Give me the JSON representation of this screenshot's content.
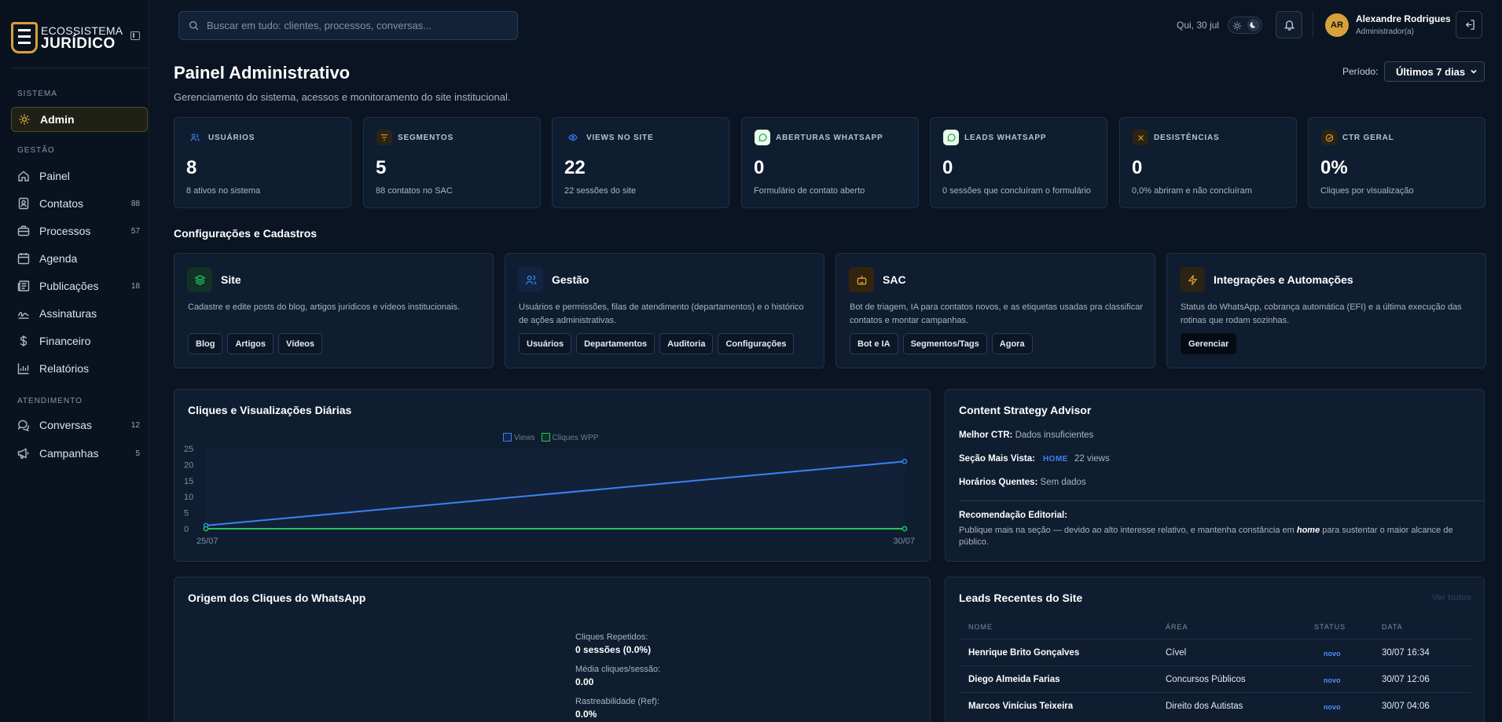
{
  "brand": {
    "line1": "ECOSSISTEMA",
    "line2": "JURÍDICO"
  },
  "sidebar": {
    "sections": {
      "sistema": "SISTEMA",
      "gestao": "GESTÃO",
      "atendimento": "ATENDIMENTO"
    },
    "items": [
      {
        "label": "Admin",
        "icon": "admin-icon",
        "count": ""
      },
      {
        "label": "Painel",
        "icon": "home-icon",
        "count": ""
      },
      {
        "label": "Contatos",
        "icon": "contacts-icon",
        "count": "88"
      },
      {
        "label": "Processos",
        "icon": "briefcase-icon",
        "count": "57"
      },
      {
        "label": "Agenda",
        "icon": "calendar-icon",
        "count": ""
      },
      {
        "label": "Publicações",
        "icon": "newspaper-icon",
        "count": "18"
      },
      {
        "label": "Assinaturas",
        "icon": "signature-icon",
        "count": ""
      },
      {
        "label": "Financeiro",
        "icon": "dollar-icon",
        "count": ""
      },
      {
        "label": "Relatórios",
        "icon": "chart-icon",
        "count": ""
      },
      {
        "label": "Conversas",
        "icon": "chat-icon",
        "count": "12"
      },
      {
        "label": "Campanhas",
        "icon": "megaphone-icon",
        "count": "5"
      }
    ]
  },
  "topbar": {
    "search_placeholder": "Buscar em tudo: clientes, processos, conversas...",
    "date": "Qui, 30 jul",
    "user": {
      "initials": "AR",
      "name": "Alexandre Rodrigues",
      "role": "Administrador(a)"
    }
  },
  "header": {
    "title": "Painel Administrativo",
    "subtitle": "Gerenciamento do sistema, acessos e monitoramento do site institucional.",
    "period_label": "Período:",
    "period_value": "Últimos 7 dias"
  },
  "stats": [
    {
      "label": "USUÁRIOS",
      "value": "8",
      "sub": "8 ativos no sistema",
      "icon": "users-icon",
      "color": "#3b82f6"
    },
    {
      "label": "SEGMENTOS",
      "value": "5",
      "sub": "88 contatos no SAC",
      "icon": "filter-icon",
      "color": "#d99a2b"
    },
    {
      "label": "VIEWS NO SITE",
      "value": "22",
      "sub": "22 sessões do site",
      "icon": "eye-icon",
      "color": "#3b82f6"
    },
    {
      "label": "ABERTURAS WHATSAPP",
      "value": "0",
      "sub": "Formulário de contato aberto",
      "icon": "whatsapp-icon",
      "color": "#e9fbe9"
    },
    {
      "label": "LEADS WHATSAPP",
      "value": "0",
      "sub": "0 sessões que concluíram o formulário",
      "icon": "whatsapp-icon",
      "color": "#e9fbe9"
    },
    {
      "label": "DESISTÊNCIAS",
      "value": "0",
      "sub": "0,0% abriram e não concluíram",
      "icon": "x-icon",
      "color": "#d99a2b"
    },
    {
      "label": "CTR GERAL",
      "value": "0%",
      "sub": "Cliques por visualização",
      "icon": "target-icon",
      "color": "#d99a2b"
    }
  ],
  "config": {
    "title": "Configurações e Cadastros",
    "cards": [
      {
        "title": "Site",
        "desc": "Cadastre e edite posts do blog, artigos jurídicos e vídeos institucionais.",
        "icon": "layers-icon",
        "buttons": [
          "Blog",
          "Artigos",
          "Vídeos"
        ]
      },
      {
        "title": "Gestão",
        "desc": "Usuários e permissões, filas de atendimento (departamentos) e o histórico de ações administrativas.",
        "icon": "users-icon",
        "buttons": [
          "Usuários",
          "Departamentos",
          "Auditoria",
          "Configurações"
        ]
      },
      {
        "title": "SAC",
        "desc": "Bot de triagem, IA para contatos novos, e as etiquetas usadas pra classificar contatos e montar campanhas.",
        "icon": "bot-icon",
        "buttons": [
          "Bot e IA",
          "Segmentos/Tags",
          "Agora"
        ]
      },
      {
        "title": "Integrações e Automações",
        "desc": "Status do WhatsApp, cobrança automática (EFI) e a última execução das rotinas que rodam sozinhas.",
        "icon": "bolt-icon",
        "buttons": [
          "Gerenciar"
        ]
      }
    ]
  },
  "daily_chart": {
    "title": "Cliques e Visualizações Diárias",
    "legend": [
      "Views",
      "Cliques WPP"
    ]
  },
  "chart_data": {
    "type": "line",
    "x": [
      "25/07",
      "30/07"
    ],
    "series": [
      {
        "name": "Views",
        "values": [
          1,
          21
        ],
        "color": "#3b82f6"
      },
      {
        "name": "Cliques WPP",
        "values": [
          0,
          0
        ],
        "color": "#22c55e"
      }
    ],
    "yticks": [
      "0",
      "5",
      "10",
      "15",
      "20",
      "25"
    ],
    "ylim": [
      0,
      25
    ]
  },
  "advisor": {
    "title": "Content Strategy Advisor",
    "best_ctr_label": "Melhor CTR:",
    "best_ctr_value": "Dados insuficientes",
    "most_viewed_label": "Seção Mais Vista:",
    "most_viewed_tag": "HOME",
    "most_viewed_value": "22 views",
    "hot_hours_label": "Horários Quentes:",
    "hot_hours_value": "Sem dados",
    "rec_label": "Recomendação Editorial:",
    "rec_text_1": "Publique mais na seção — devido ao alto interesse relativo, e mantenha constância em ",
    "rec_em": "home",
    "rec_text_2": " para sustentar o maior alcance de público."
  },
  "origin": {
    "title": "Origem dos Cliques do WhatsApp",
    "rows": [
      {
        "label": "Cliques Repetidos:",
        "value": "0 sessões (0.0%)"
      },
      {
        "label": "Média cliques/sessão:",
        "value": "0.00"
      },
      {
        "label": "Rastreabilidade (Ref):",
        "value": "0.0%"
      }
    ]
  },
  "leads": {
    "title": "Leads Recentes do Site",
    "see_all": "Ver todos",
    "columns": [
      "NOME",
      "ÁREA",
      "STATUS",
      "DATA"
    ],
    "rows": [
      {
        "name": "Henrique Brito Gonçalves",
        "area": "Cível",
        "status": "novo",
        "date": "30/07 16:34"
      },
      {
        "name": "Diego Almeida Farias",
        "area": "Concursos Públicos",
        "status": "novo",
        "date": "30/07 12:06"
      },
      {
        "name": "Marcos Vinícius Teixeira",
        "area": "Direito dos Autistas",
        "status": "novo",
        "date": "30/07 04:06"
      }
    ]
  }
}
